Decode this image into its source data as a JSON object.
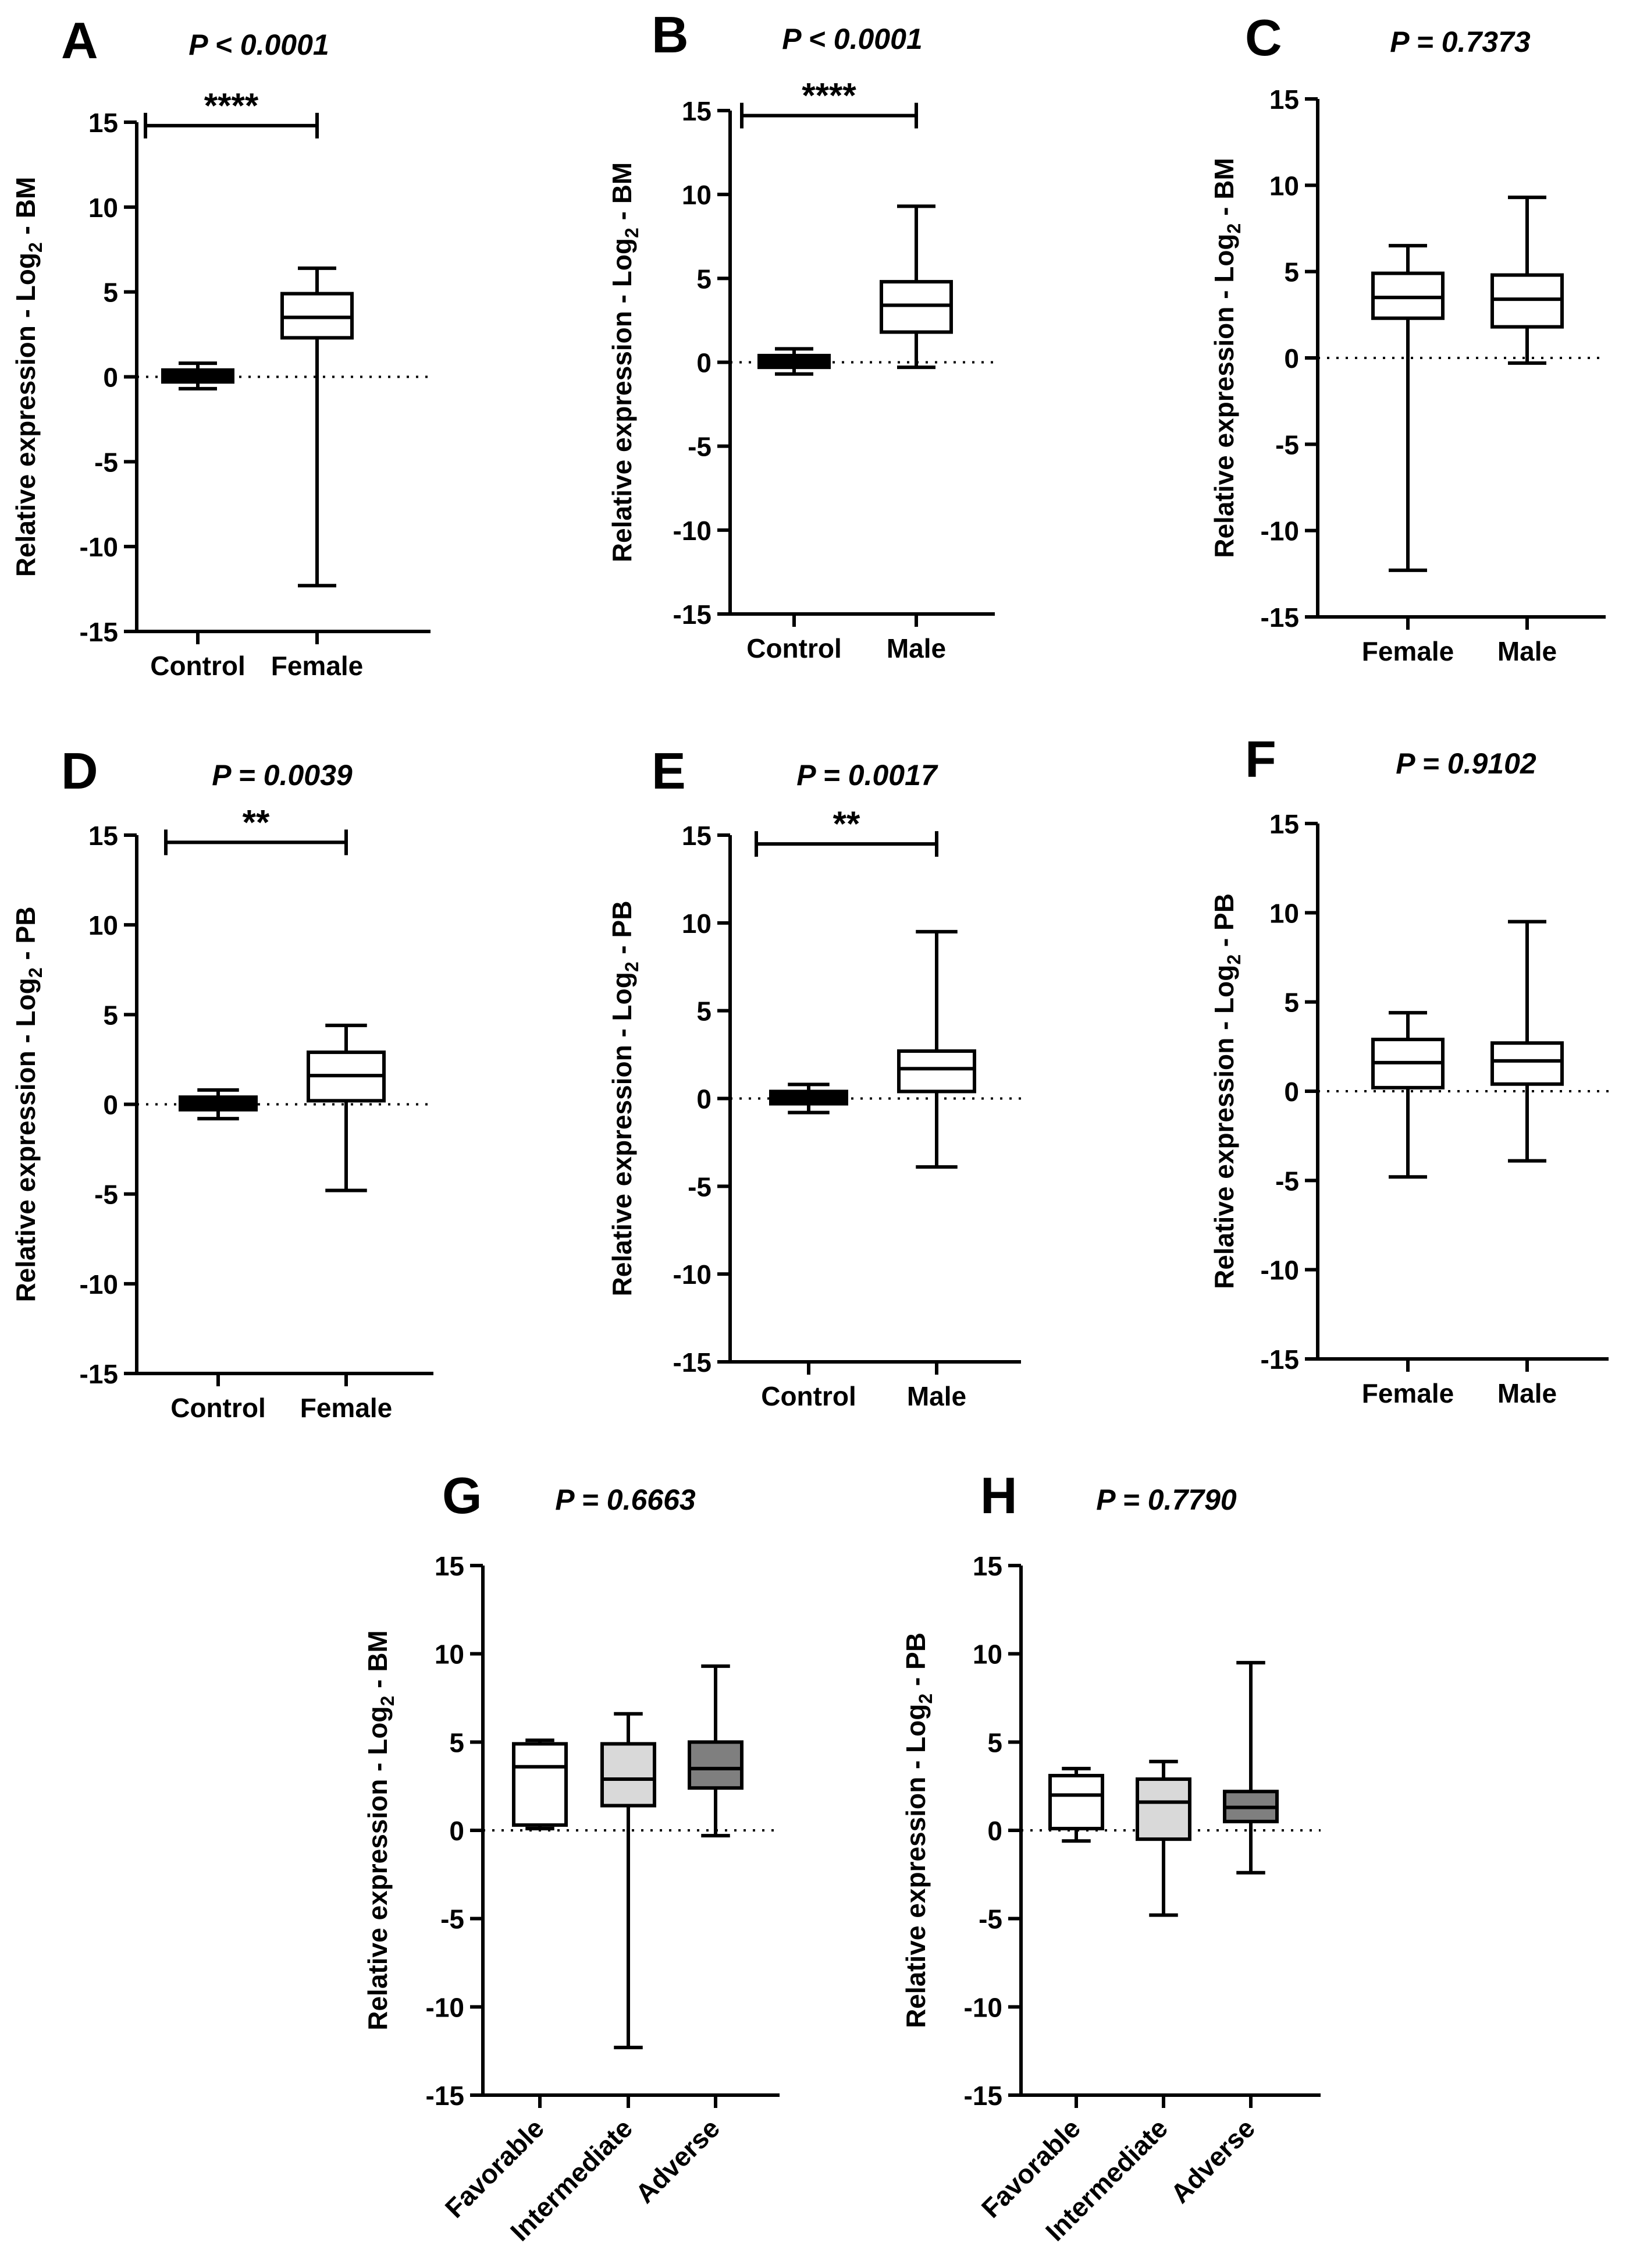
{
  "chart_data": [
    {
      "panel": "A",
      "type": "box",
      "title": "P < 0.0001",
      "ylabel": "Relative expression - Log2 - BM",
      "ylim": [
        -15,
        15
      ],
      "yticks": [
        15,
        10,
        5,
        0,
        -5,
        -10,
        -15
      ],
      "categories": [
        "Control",
        "Female"
      ],
      "boxes": [
        {
          "min": -0.7,
          "q1": -0.3,
          "median": 0.0,
          "q3": 0.4,
          "max": 0.8,
          "fill": "#000000"
        },
        {
          "min": -12.3,
          "q1": 2.3,
          "median": 3.5,
          "q3": 4.9,
          "max": 6.4,
          "fill": "#ffffff"
        }
      ],
      "significance": {
        "label": "****",
        "level": 14.8
      }
    },
    {
      "panel": "B",
      "type": "box",
      "title": "P < 0.0001",
      "ylabel": "Relative expression - Log2 - BM",
      "ylim": [
        -15,
        15
      ],
      "yticks": [
        15,
        10,
        5,
        0,
        -5,
        -10,
        -15
      ],
      "categories": [
        "Control",
        "Male"
      ],
      "boxes": [
        {
          "min": -0.7,
          "q1": -0.3,
          "median": 0.0,
          "q3": 0.4,
          "max": 0.8,
          "fill": "#000000"
        },
        {
          "min": -0.3,
          "q1": 1.8,
          "median": 3.4,
          "q3": 4.8,
          "max": 9.3,
          "fill": "#ffffff"
        }
      ],
      "significance": {
        "label": "****",
        "level": 14.7
      }
    },
    {
      "panel": "C",
      "type": "box",
      "title": "P = 0.7373",
      "ylabel": "Relative expression - Log2 - BM",
      "ylim": [
        -15,
        15
      ],
      "yticks": [
        15,
        10,
        5,
        0,
        -5,
        -10,
        -15
      ],
      "categories": [
        "Female",
        "Male"
      ],
      "boxes": [
        {
          "min": -12.3,
          "q1": 2.3,
          "median": 3.5,
          "q3": 4.9,
          "max": 6.5,
          "fill": "#ffffff"
        },
        {
          "min": -0.3,
          "q1": 1.8,
          "median": 3.4,
          "q3": 4.8,
          "max": 9.3,
          "fill": "#ffffff"
        }
      ]
    },
    {
      "panel": "D",
      "type": "box",
      "title": "P = 0.0039",
      "ylabel": "Relative expression - Log2 - PB",
      "ylim": [
        -15,
        15
      ],
      "yticks": [
        15,
        10,
        5,
        0,
        -5,
        -10,
        -15
      ],
      "categories": [
        "Control",
        "Female"
      ],
      "boxes": [
        {
          "min": -0.8,
          "q1": -0.3,
          "median": 0.0,
          "q3": 0.4,
          "max": 0.8,
          "fill": "#000000"
        },
        {
          "min": -4.8,
          "q1": 0.2,
          "median": 1.6,
          "q3": 2.9,
          "max": 4.4,
          "fill": "#ffffff"
        }
      ],
      "significance": {
        "label": "**",
        "level": 14.6
      }
    },
    {
      "panel": "E",
      "type": "box",
      "title": "P = 0.0017",
      "ylabel": "Relative expression - Log2 - PB",
      "ylim": [
        -15,
        15
      ],
      "yticks": [
        15,
        10,
        5,
        0,
        -5,
        -10,
        -15
      ],
      "categories": [
        "Control",
        "Male"
      ],
      "boxes": [
        {
          "min": -0.8,
          "q1": -0.3,
          "median": 0.0,
          "q3": 0.4,
          "max": 0.8,
          "fill": "#000000"
        },
        {
          "min": -3.9,
          "q1": 0.4,
          "median": 1.7,
          "q3": 2.7,
          "max": 9.5,
          "fill": "#ffffff"
        }
      ],
      "significance": {
        "label": "**",
        "level": 14.5
      }
    },
    {
      "panel": "F",
      "type": "box",
      "title": "P = 0.9102",
      "ylabel": "Relative expression - Log2 - PB",
      "ylim": [
        -15,
        15
      ],
      "yticks": [
        15,
        10,
        5,
        0,
        -5,
        -10,
        -15
      ],
      "categories": [
        "Female",
        "Male"
      ],
      "boxes": [
        {
          "min": -4.8,
          "q1": 0.2,
          "median": 1.6,
          "q3": 2.9,
          "max": 4.4,
          "fill": "#ffffff"
        },
        {
          "min": -3.9,
          "q1": 0.4,
          "median": 1.7,
          "q3": 2.7,
          "max": 9.5,
          "fill": "#ffffff"
        }
      ]
    },
    {
      "panel": "G",
      "type": "box",
      "title": "P = 0.6663",
      "ylabel": "Relative expression - Log2 - BM",
      "ylim": [
        -15,
        15
      ],
      "yticks": [
        15,
        10,
        5,
        0,
        -5,
        -10,
        -15
      ],
      "categories": [
        "Favorable",
        "Intermediate",
        "Adverse"
      ],
      "boxes": [
        {
          "min": 0.1,
          "q1": 0.3,
          "median": 3.6,
          "q3": 4.9,
          "max": 5.1,
          "fill": "#ffffff"
        },
        {
          "min": -12.3,
          "q1": 1.4,
          "median": 2.9,
          "q3": 4.9,
          "max": 6.6,
          "fill": "#d9d9d9"
        },
        {
          "min": -0.3,
          "q1": 2.4,
          "median": 3.5,
          "q3": 5.0,
          "max": 9.3,
          "fill": "#7f7f7f"
        }
      ]
    },
    {
      "panel": "H",
      "type": "box",
      "title": "P = 0.7790",
      "ylabel": "Relative expression - Log2 - PB",
      "ylim": [
        -15,
        15
      ],
      "yticks": [
        15,
        10,
        5,
        0,
        -5,
        -10,
        -15
      ],
      "categories": [
        "Favorable",
        "Intermediate",
        "Adverse"
      ],
      "boxes": [
        {
          "min": -0.6,
          "q1": 0.1,
          "median": 2.0,
          "q3": 3.1,
          "max": 3.5,
          "fill": "#ffffff"
        },
        {
          "min": -4.8,
          "q1": -0.5,
          "median": 1.6,
          "q3": 2.9,
          "max": 3.9,
          "fill": "#d9d9d9"
        },
        {
          "min": -2.4,
          "q1": 0.5,
          "median": 1.3,
          "q3": 2.2,
          "max": 9.5,
          "fill": "#7f7f7f"
        }
      ]
    }
  ]
}
